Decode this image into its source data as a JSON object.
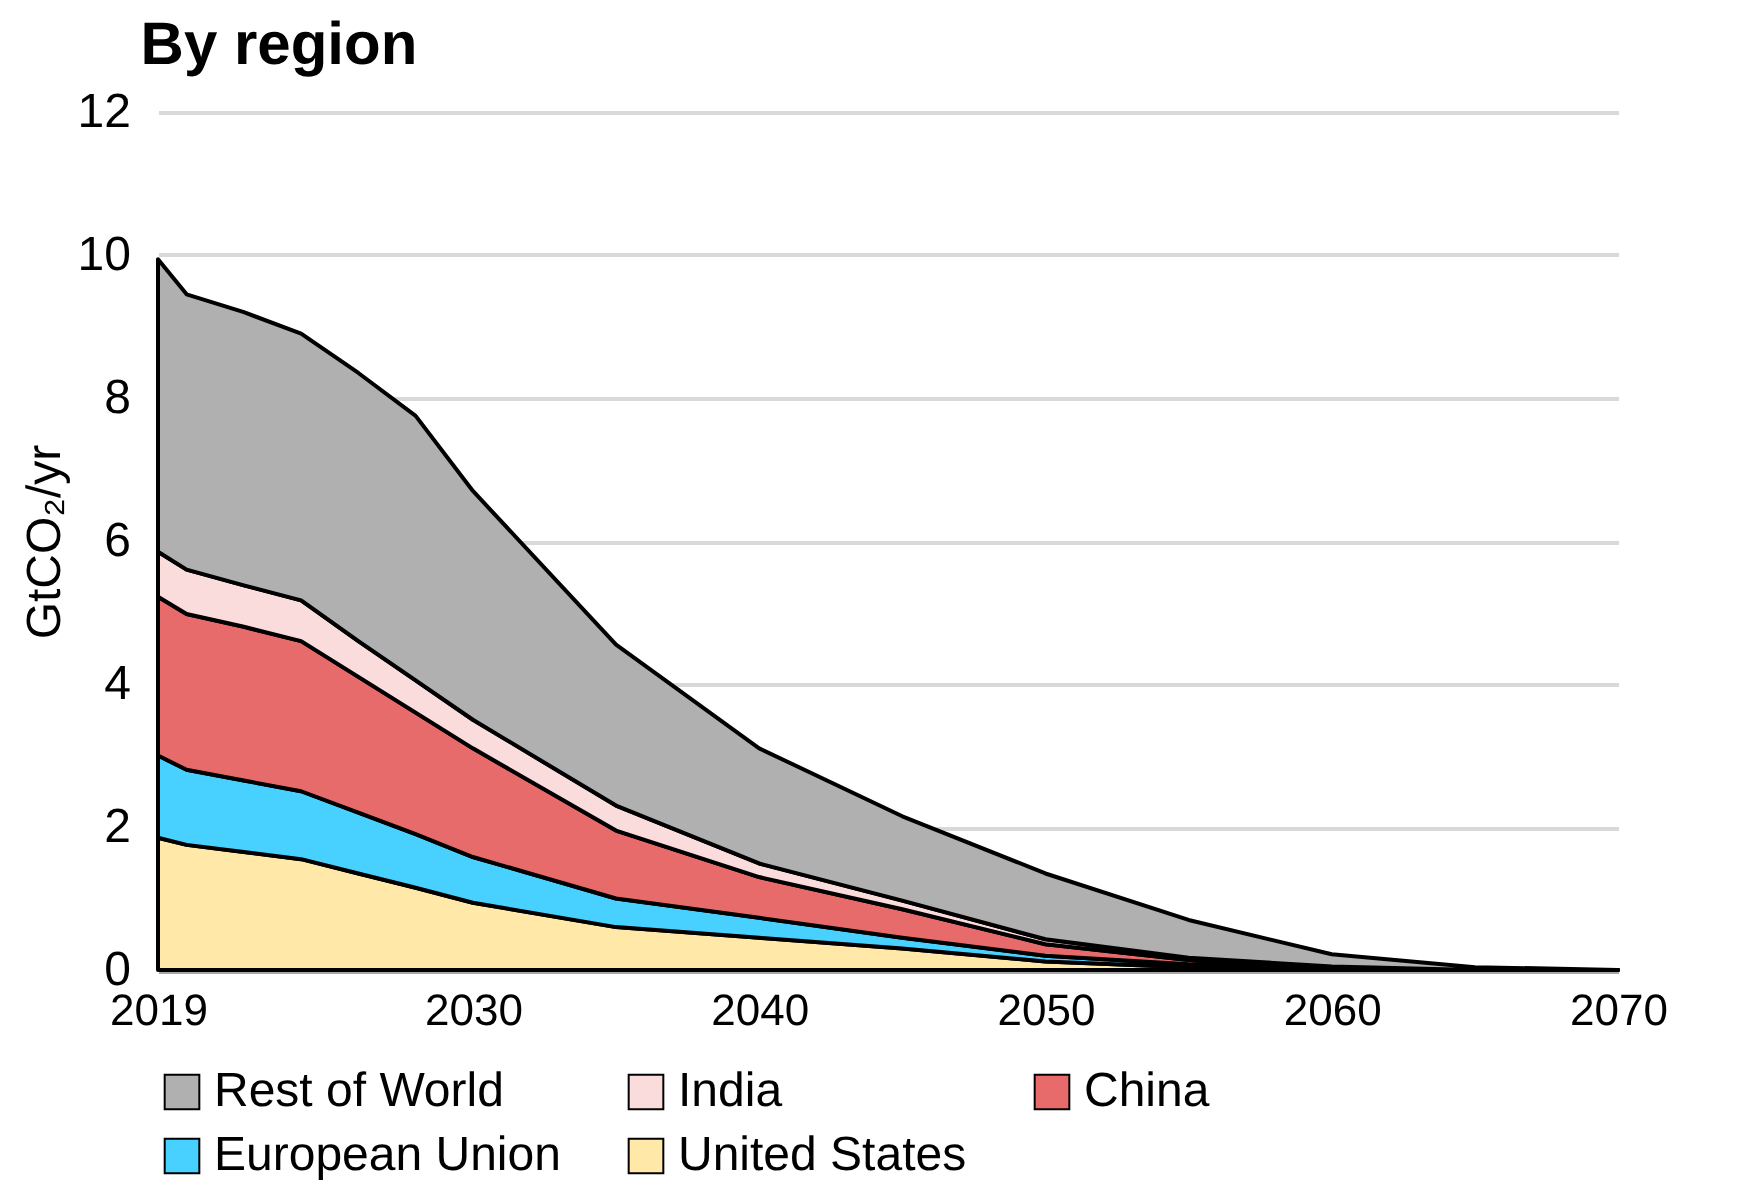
{
  "chart_data": {
    "type": "area",
    "title": "By region",
    "ylabel": "GtCO₂/yr",
    "stacked": true,
    "x": [
      2019,
      2020,
      2022,
      2024,
      2026,
      2028,
      2030,
      2035,
      2040,
      2045,
      2050,
      2055,
      2060,
      2065,
      2070
    ],
    "series": [
      {
        "name": "United States",
        "color": "#ffe8a8",
        "values": [
          1.85,
          1.75,
          1.65,
          1.55,
          1.35,
          1.15,
          0.94,
          0.6,
          0.45,
          0.3,
          0.12,
          0.04,
          0.01,
          0,
          0
        ]
      },
      {
        "name": "European Union",
        "color": "#48d1ff",
        "values": [
          1.15,
          1.05,
          1.0,
          0.95,
          0.85,
          0.75,
          0.64,
          0.4,
          0.28,
          0.15,
          0.08,
          0.04,
          0.01,
          0,
          0
        ]
      },
      {
        "name": "China",
        "color": "#e86b6b",
        "values": [
          2.22,
          2.18,
          2.15,
          2.1,
          1.9,
          1.7,
          1.52,
          0.95,
          0.57,
          0.4,
          0.16,
          0.06,
          0.02,
          0,
          0
        ]
      },
      {
        "name": "India",
        "color": "#fadcdc",
        "values": [
          0.63,
          0.62,
          0.58,
          0.57,
          0.5,
          0.45,
          0.4,
          0.35,
          0.19,
          0.12,
          0.07,
          0.03,
          0.01,
          0,
          0
        ]
      },
      {
        "name": "Rest of World",
        "color": "#b0b0b0",
        "values": [
          4.09,
          3.85,
          3.82,
          3.73,
          3.75,
          3.7,
          3.2,
          2.25,
          1.61,
          1.18,
          0.92,
          0.53,
          0.17,
          0.04,
          0
        ]
      }
    ],
    "xlim": [
      2019,
      2070
    ],
    "xticks": [
      2019,
      2030,
      2040,
      2050,
      2060,
      2070
    ],
    "ylim": [
      0,
      12
    ],
    "yticks": [
      0,
      2,
      4,
      6,
      8,
      10,
      12
    ],
    "grid": "y",
    "legend": "bottom"
  }
}
